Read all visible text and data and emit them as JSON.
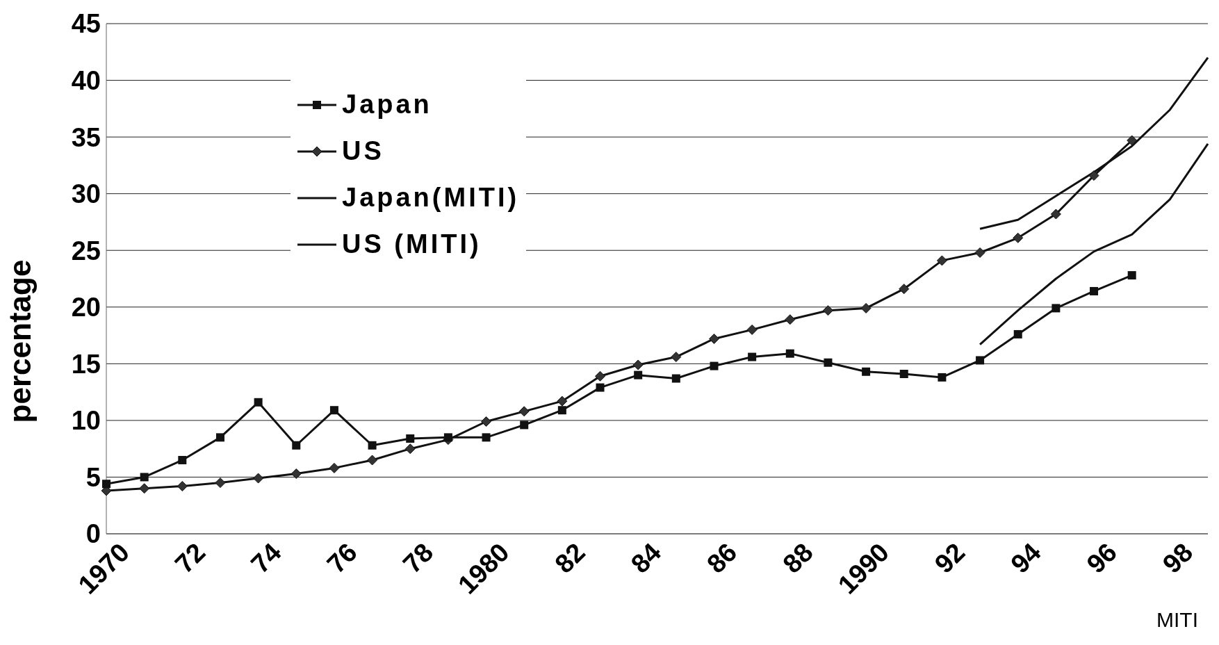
{
  "chart_data": {
    "type": "line",
    "ylabel": "percentage",
    "categories": [
      "1970",
      null,
      "72",
      null,
      "74",
      null,
      "76",
      null,
      "78",
      null,
      "1980",
      null,
      "82",
      null,
      "84",
      null,
      "86",
      null,
      "88",
      null,
      "1990",
      null,
      "92",
      null,
      "94",
      null,
      "96",
      null,
      "98",
      null
    ],
    "series": [
      {
        "name": "Japan",
        "color": "#111111",
        "marker": "square",
        "values": [
          4.4,
          5.0,
          6.5,
          8.5,
          11.6,
          7.8,
          10.9,
          7.8,
          8.4,
          8.5,
          8.5,
          9.6,
          10.9,
          12.9,
          14.0,
          13.7,
          14.8,
          15.6,
          15.9,
          15.1,
          14.3,
          14.1,
          13.8,
          15.3,
          17.6,
          19.9,
          21.4,
          22.8,
          null,
          null
        ]
      },
      {
        "name": "US",
        "color": "#111111",
        "marker": "diamond",
        "values": [
          3.8,
          4.0,
          4.2,
          4.5,
          4.9,
          5.3,
          5.8,
          6.5,
          7.5,
          8.3,
          9.9,
          10.8,
          11.7,
          13.9,
          14.9,
          15.6,
          17.2,
          18.0,
          18.9,
          19.7,
          19.9,
          21.6,
          24.1,
          24.8,
          26.1,
          28.2,
          31.6,
          34.7,
          null,
          null
        ]
      },
      {
        "name": "Japan(MITI)",
        "color": "#111111",
        "marker": "none",
        "values": [
          null,
          null,
          null,
          null,
          null,
          null,
          null,
          null,
          null,
          null,
          null,
          null,
          null,
          null,
          null,
          null,
          null,
          null,
          null,
          null,
          null,
          null,
          null,
          16.7,
          19.7,
          22.5,
          24.9,
          26.4,
          29.5,
          34.4
        ]
      },
      {
        "name": "US (MITI)",
        "color": "#111111",
        "marker": "none",
        "values": [
          null,
          null,
          null,
          null,
          null,
          null,
          null,
          null,
          null,
          null,
          null,
          null,
          null,
          null,
          null,
          null,
          null,
          null,
          null,
          null,
          null,
          null,
          null,
          26.9,
          27.7,
          29.8,
          31.9,
          34.2,
          37.4,
          42.0
        ]
      }
    ],
    "ylim": [
      0,
      45
    ],
    "yticks": [
      0,
      5,
      10,
      15,
      20,
      25,
      30,
      35,
      40,
      45
    ],
    "grid": "y",
    "legend": "top left",
    "annotations": [
      "MITI"
    ]
  }
}
